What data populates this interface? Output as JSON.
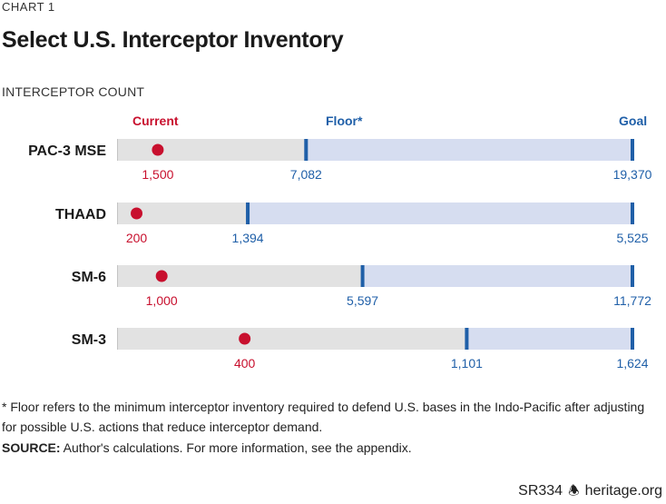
{
  "header": {
    "chart_number": "CHART 1",
    "title": "Select U.S. Interceptor Inventory"
  },
  "colors": {
    "bar_gray": "#e2e2e2",
    "bar_blue": "#d6ddf0",
    "current": "#c8102e",
    "floor_goal": "#1f5fa8",
    "axis_line": "#b0b0b0"
  },
  "chart_data": {
    "type": "bar",
    "title": "Select U.S. Interceptor Inventory",
    "ylabel": "INTERCEPTOR COUNT",
    "legend": [
      "Current",
      "Floor*",
      "Goal"
    ],
    "categories": [
      "PAC-3 MSE",
      "THAAD",
      "SM-6",
      "SM-3"
    ],
    "series": [
      {
        "name": "Current",
        "values": [
          1500,
          200,
          1000,
          400
        ],
        "labels": [
          "1,500",
          "200",
          "1,000",
          "400"
        ]
      },
      {
        "name": "Floor*",
        "values": [
          7082,
          1394,
          5597,
          1101
        ],
        "labels": [
          "7,082",
          "1,394",
          "5,597",
          "1,101"
        ]
      },
      {
        "name": "Goal",
        "values": [
          19370,
          5525,
          11772,
          1624
        ],
        "labels": [
          "19,370",
          "5,525",
          "11,772",
          "1,624"
        ]
      }
    ]
  },
  "footnote": {
    "line1": "* Floor refers to the minimum interceptor inventory required to defend U.S. bases in the Indo-Pacific after adjusting",
    "line2": "for possible U.S. actions that reduce interceptor demand.",
    "source_label": "SOURCE:",
    "source_text": " Author's calculations. For more information, see the appendix."
  },
  "brand": {
    "report_id": "SR334",
    "bell_icon": "🕭",
    "site": "heritage.org"
  }
}
